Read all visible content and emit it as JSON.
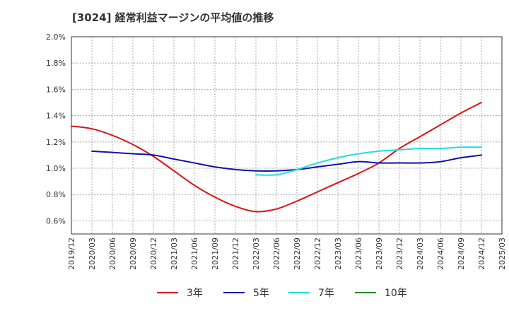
{
  "chart_data": {
    "type": "line",
    "title": "[3024]  経常利益マージンの平均値の推移",
    "xlabel": "",
    "ylabel": "",
    "x_ticks": [
      "2019/12",
      "2020/03",
      "2020/06",
      "2020/09",
      "2020/12",
      "2021/03",
      "2021/06",
      "2021/09",
      "2021/12",
      "2022/03",
      "2022/06",
      "2022/09",
      "2022/12",
      "2023/03",
      "2023/06",
      "2023/09",
      "2023/12",
      "2024/03",
      "2024/06",
      "2024/09",
      "2024/12",
      "2025/03"
    ],
    "y_ticks": [
      "0.6%",
      "0.8%",
      "1.0%",
      "1.2%",
      "1.4%",
      "1.6%",
      "1.8%",
      "2.0%"
    ],
    "ylim": [
      0.5,
      2.0
    ],
    "grid": true,
    "legend_position": "bottom",
    "series": [
      {
        "name": "3年",
        "color": "#dd1111",
        "x": [
          "2019/12",
          "2020/03",
          "2020/06",
          "2020/09",
          "2020/12",
          "2021/03",
          "2021/06",
          "2021/09",
          "2021/12",
          "2022/03",
          "2022/06",
          "2022/09",
          "2022/12",
          "2023/03",
          "2023/06",
          "2023/09",
          "2023/12",
          "2024/03",
          "2024/06",
          "2024/09",
          "2024/12"
        ],
        "values": [
          1.32,
          1.3,
          1.25,
          1.18,
          1.09,
          0.98,
          0.87,
          0.78,
          0.71,
          0.67,
          0.69,
          0.75,
          0.82,
          0.89,
          0.96,
          1.04,
          1.15,
          1.24,
          1.33,
          1.42,
          1.5
        ]
      },
      {
        "name": "5年",
        "color": "#1111aa",
        "x": [
          "2020/03",
          "2020/06",
          "2020/09",
          "2020/12",
          "2021/03",
          "2021/06",
          "2021/09",
          "2021/12",
          "2022/03",
          "2022/06",
          "2022/09",
          "2022/12",
          "2023/03",
          "2023/06",
          "2023/09",
          "2023/12",
          "2024/03",
          "2024/06",
          "2024/09",
          "2024/12"
        ],
        "values": [
          1.13,
          1.12,
          1.11,
          1.1,
          1.07,
          1.04,
          1.01,
          0.99,
          0.98,
          0.98,
          0.99,
          1.01,
          1.03,
          1.05,
          1.04,
          1.04,
          1.04,
          1.05,
          1.08,
          1.1
        ]
      },
      {
        "name": "7年",
        "color": "#22dddd",
        "x": [
          "2022/03",
          "2022/06",
          "2022/09",
          "2022/12",
          "2023/03",
          "2023/06",
          "2023/09",
          "2023/12",
          "2024/03",
          "2024/06",
          "2024/09",
          "2024/12"
        ],
        "values": [
          0.95,
          0.95,
          0.99,
          1.04,
          1.08,
          1.11,
          1.13,
          1.14,
          1.15,
          1.15,
          1.16,
          1.16
        ]
      },
      {
        "name": "10年",
        "color": "#228822",
        "x": [],
        "values": []
      }
    ]
  }
}
